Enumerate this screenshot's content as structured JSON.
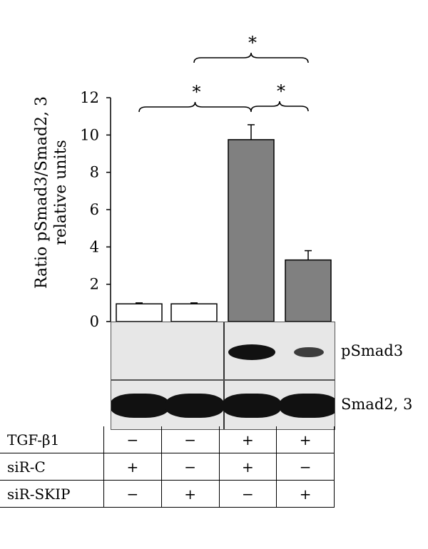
{
  "chart_data": {
    "type": "bar",
    "ylabel_lines": [
      "Ratio pSmad3/Smad2, 3",
      "relative units"
    ],
    "ylim": [
      0,
      12
    ],
    "yticks": [
      0,
      2,
      4,
      6,
      8,
      10,
      12
    ],
    "values": [
      0.95,
      0.95,
      9.75,
      3.3
    ],
    "errors": [
      0.05,
      0.05,
      0.8,
      0.5
    ],
    "bar_colors": [
      "#ffffff",
      "#ffffff",
      "#808080",
      "#808080"
    ],
    "significance": [
      {
        "from": 0,
        "to": 2,
        "label": "*"
      },
      {
        "from": 2,
        "to": 3,
        "label": "*"
      },
      {
        "from": 1,
        "to": 3,
        "label": "*"
      }
    ]
  },
  "blots": [
    {
      "label": "pSmad3",
      "intensity": [
        0,
        0,
        1.0,
        0.55
      ]
    },
    {
      "label": "Smad2, 3",
      "intensity": [
        1,
        1,
        1,
        1
      ]
    }
  ],
  "conditions": [
    {
      "label": "TGF-β1",
      "values": [
        "−",
        "−",
        "+",
        "+"
      ]
    },
    {
      "label": "siR-C",
      "values": [
        "+",
        "−",
        "+",
        "−"
      ]
    },
    {
      "label": "siR-SKIP",
      "values": [
        "−",
        "+",
        "−",
        "+"
      ]
    }
  ]
}
